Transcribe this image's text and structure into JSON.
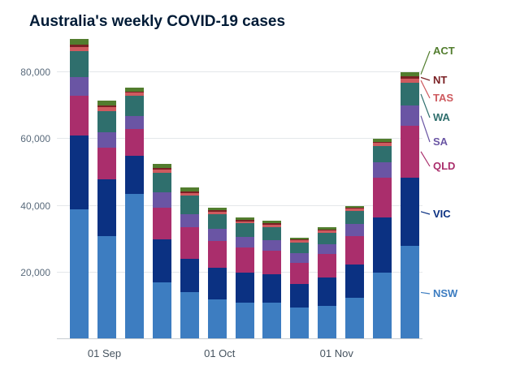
{
  "title": "Australia's weekly COVID-19 cases",
  "colors": {
    "NSW": "#3d7dc1",
    "VIC": "#0b3182",
    "QLD": "#aa2e6c",
    "SA": "#6a55a4",
    "WA": "#2f6f6d",
    "TAS": "#ce5a5f",
    "NT": "#7a2024",
    "ACT": "#527d2e",
    "grid": "#e4e7ea",
    "axis": "#c7ccd1",
    "tick_text": "#5a6b7c",
    "title_text": "#001b36"
  },
  "chart_data": {
    "type": "bar",
    "stacked": true,
    "title": "Australia's weekly COVID-19 cases",
    "xlabel": "",
    "ylabel": "",
    "ylim": [
      0,
      91000
    ],
    "grid": true,
    "legend_position": "right",
    "y_ticks": [
      {
        "value": 20000,
        "label": "20,000"
      },
      {
        "value": 40000,
        "label": "40,000"
      },
      {
        "value": 60000,
        "label": "60,000"
      },
      {
        "value": 80000,
        "label": "80,000"
      }
    ],
    "x_ticks": [
      {
        "label": "01 Sep",
        "pos": 0.13
      },
      {
        "label": "01 Oct",
        "pos": 0.445
      },
      {
        "label": "01 Nov",
        "pos": 0.765
      }
    ],
    "series": [
      {
        "name": "NSW",
        "values": [
          39000,
          31000,
          43500,
          17000,
          14000,
          12000,
          11000,
          11000,
          9500,
          10000,
          12500,
          20000,
          28000
        ]
      },
      {
        "name": "VIC",
        "values": [
          22000,
          17000,
          11500,
          13000,
          10000,
          9500,
          9000,
          8500,
          7000,
          8500,
          10000,
          16500,
          20500
        ]
      },
      {
        "name": "QLD",
        "values": [
          12000,
          9500,
          8000,
          9500,
          9500,
          8000,
          7500,
          7000,
          6500,
          7000,
          8500,
          12000,
          15500
        ]
      },
      {
        "name": "SA",
        "values": [
          5500,
          4500,
          4000,
          4500,
          4000,
          3500,
          3200,
          3200,
          2800,
          3000,
          3500,
          4500,
          6000
        ]
      },
      {
        "name": "WA",
        "values": [
          8000,
          6500,
          6000,
          6000,
          5500,
          4500,
          4000,
          4000,
          3200,
          3500,
          4000,
          5000,
          7000
        ]
      },
      {
        "name": "TAS",
        "values": [
          1200,
          1000,
          900,
          900,
          900,
          800,
          700,
          700,
          600,
          600,
          600,
          800,
          1200
        ]
      },
      {
        "name": "NT",
        "values": [
          600,
          500,
          400,
          400,
          400,
          300,
          300,
          300,
          300,
          300,
          300,
          400,
          600
        ]
      },
      {
        "name": "ACT",
        "values": [
          1700,
          1500,
          1200,
          1200,
          1200,
          900,
          800,
          800,
          600,
          600,
          600,
          800,
          1200
        ]
      }
    ],
    "totals": [
      90000,
      71500,
      75500,
      52500,
      45500,
      39500,
      36500,
      35500,
      30500,
      33500,
      40000,
      60000,
      80000
    ],
    "legend": [
      {
        "name": "ACT",
        "y": 63
      },
      {
        "name": "NT",
        "y": 99
      },
      {
        "name": "TAS",
        "y": 121
      },
      {
        "name": "WA",
        "y": 145
      },
      {
        "name": "SA",
        "y": 175
      },
      {
        "name": "QLD",
        "y": 205
      },
      {
        "name": "VIC",
        "y": 264
      },
      {
        "name": "NSW",
        "y": 362
      }
    ]
  }
}
